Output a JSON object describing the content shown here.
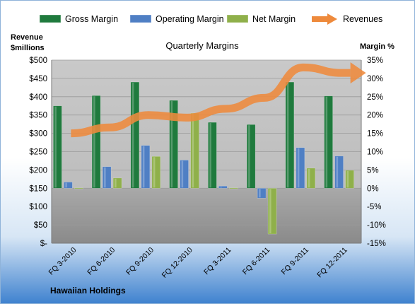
{
  "company": "Hawaiian Holdings",
  "chart_data": {
    "type": "bar",
    "title": "Quarterly Margins",
    "ylabel_left": "Revenue $millions",
    "ylabel_right": "Margin %",
    "categories": [
      "FQ 3-2010",
      "FQ 6-2010",
      "FQ 9-2010",
      "FQ 12-2010",
      "FQ 3-2011",
      "FQ 6-2011",
      "FQ 9-2011",
      "FQ 12-2011"
    ],
    "left_axis": {
      "min": 0,
      "max": 500,
      "step": 50,
      "format": "$"
    },
    "right_axis": {
      "min": -15,
      "max": 35,
      "step": 5,
      "format": "%"
    },
    "series": [
      {
        "name": "Gross Margin",
        "type": "bar",
        "axis": "right",
        "color": "#1f7a3d",
        "values": [
          22.5,
          25.3,
          29.0,
          24.0,
          18.0,
          17.4,
          29.0,
          25.2
        ]
      },
      {
        "name": "Operating Margin",
        "type": "bar",
        "axis": "right",
        "color": "#4f7fc4",
        "values": [
          1.7,
          5.9,
          11.7,
          7.7,
          0.6,
          -2.7,
          11.1,
          8.8
        ]
      },
      {
        "name": "Net Margin",
        "type": "bar",
        "axis": "right",
        "color": "#8fb04a",
        "values": [
          0.1,
          2.8,
          8.7,
          20.5,
          0.1,
          -12.5,
          5.5,
          4.9
        ]
      },
      {
        "name": "Revenues",
        "type": "line",
        "axis": "left",
        "color": "#ee8a3c",
        "values": [
          300,
          316,
          350,
          343,
          367,
          397,
          480,
          465
        ]
      }
    ],
    "grid": true,
    "legend": "top"
  }
}
